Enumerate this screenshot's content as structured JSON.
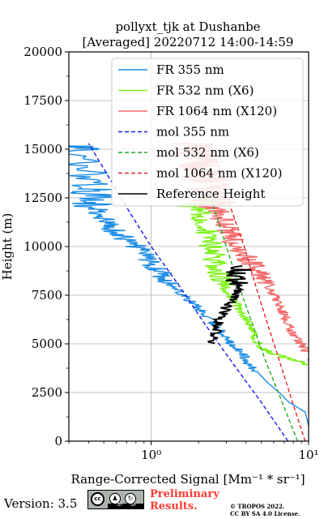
{
  "chart_data": {
    "type": "line",
    "title_line1": "pollyxt_tjk at Dushanbe",
    "title_line2": "[Averaged] 20220712 14:00-14:59",
    "xlabel": "Range-Corrected Signal [Mm⁻¹ * sr⁻¹]",
    "ylabel": "Height (m)",
    "xscale": "log",
    "xlim": [
      0.3,
      10
    ],
    "ylim": [
      0,
      20000
    ],
    "grid": true,
    "legend_position": "top-right",
    "x_ticks": [
      {
        "label": "10⁰",
        "value": 1
      },
      {
        "label": "10¹",
        "value": 10
      }
    ],
    "y_ticks": [
      {
        "label": "0",
        "value": 0
      },
      {
        "label": "2500",
        "value": 2500
      },
      {
        "label": "5000",
        "value": 5000
      },
      {
        "label": "7500",
        "value": 7500
      },
      {
        "label": "10000",
        "value": 10000
      },
      {
        "label": "12500",
        "value": 12500
      },
      {
        "label": "15000",
        "value": 15000
      },
      {
        "label": "17500",
        "value": 17500
      },
      {
        "label": "20000",
        "value": 20000
      }
    ],
    "series": [
      {
        "name": "FR 355 nm",
        "style": "solid",
        "color": "#1f8ee6",
        "noise": true,
        "points": [
          [
            11,
            0
          ],
          [
            10.5,
            150
          ],
          [
            9.5,
            1500
          ],
          [
            7.5,
            2000
          ],
          [
            6.5,
            2500
          ],
          [
            5.5,
            3000
          ],
          [
            4.8,
            3500
          ],
          [
            4.1,
            4000
          ],
          [
            3.8,
            4500
          ],
          [
            3.2,
            5000
          ],
          [
            2.9,
            5500
          ],
          [
            2.5,
            6000
          ],
          [
            2.2,
            6500
          ],
          [
            1.9,
            7000
          ],
          [
            1.6,
            7500
          ],
          [
            1.4,
            8000
          ],
          [
            1.2,
            8500
          ],
          [
            1.05,
            9000
          ],
          [
            0.9,
            9500
          ],
          [
            0.8,
            10000
          ],
          [
            0.65,
            10500
          ],
          [
            0.55,
            11000
          ],
          [
            0.5,
            11500
          ],
          [
            0.45,
            12000
          ],
          [
            0.42,
            12500
          ],
          [
            0.4,
            13000
          ],
          [
            0.38,
            14000
          ],
          [
            0.35,
            15000
          ],
          [
            0.3,
            15300
          ]
        ]
      },
      {
        "name": "FR 532 nm (X6)",
        "style": "solid",
        "color": "#7ff21d",
        "noise": true,
        "points": [
          [
            11,
            0
          ],
          [
            10,
            3900
          ],
          [
            9,
            4100
          ],
          [
            7,
            4300
          ],
          [
            5.5,
            4600
          ],
          [
            4.8,
            5000
          ],
          [
            4.5,
            5500
          ],
          [
            4.2,
            6000
          ],
          [
            3.9,
            6500
          ],
          [
            3.5,
            7000
          ],
          [
            3.1,
            7500
          ],
          [
            2.9,
            8000
          ],
          [
            2.8,
            8500
          ],
          [
            2.6,
            9000
          ],
          [
            2.5,
            9500
          ],
          [
            2.4,
            10000
          ],
          [
            2.3,
            10500
          ],
          [
            2.2,
            11000
          ],
          [
            2.1,
            11500
          ],
          [
            2.0,
            12000
          ],
          [
            2.0,
            12500
          ]
        ]
      },
      {
        "name": "FR 1064 nm (X120)",
        "style": "solid",
        "color": "#f26b6b",
        "noise": true,
        "points": [
          [
            11,
            0
          ],
          [
            10,
            4500
          ],
          [
            9,
            5000
          ],
          [
            8,
            5500
          ],
          [
            7.5,
            6000
          ],
          [
            7,
            6500
          ],
          [
            6.5,
            7000
          ],
          [
            6,
            7500
          ],
          [
            5.5,
            8000
          ],
          [
            5,
            8500
          ],
          [
            4.5,
            9000
          ],
          [
            4,
            9500
          ],
          [
            3.5,
            10000
          ],
          [
            3.2,
            10500
          ],
          [
            3,
            11000
          ],
          [
            2.8,
            11500
          ],
          [
            2.6,
            12000
          ],
          [
            2.4,
            12500
          ],
          [
            2.3,
            13000
          ],
          [
            2.2,
            13500
          ],
          [
            2.1,
            14000
          ],
          [
            2,
            14500
          ],
          [
            1.9,
            15000
          ],
          [
            1.8,
            15300
          ]
        ]
      },
      {
        "name": "mol 355 nm",
        "style": "dashed",
        "color": "#1a1ae6",
        "points": [
          [
            7.4,
            0
          ],
          [
            5.0,
            2000
          ],
          [
            3.3,
            4000
          ],
          [
            2.2,
            6000
          ],
          [
            1.5,
            8000
          ],
          [
            1.0,
            10000
          ],
          [
            0.7,
            12000
          ],
          [
            0.5,
            14000
          ],
          [
            0.4,
            15300
          ]
        ]
      },
      {
        "name": "mol 532 nm (X6)",
        "style": "dashed",
        "color": "#22aa22",
        "points": [
          [
            8.5,
            0
          ],
          [
            6.8,
            2000
          ],
          [
            5.4,
            4000
          ],
          [
            4.4,
            6000
          ],
          [
            3.6,
            8000
          ],
          [
            3.0,
            10000
          ],
          [
            2.5,
            12000
          ],
          [
            2.1,
            14000
          ],
          [
            1.9,
            15300
          ]
        ]
      },
      {
        "name": "mol 1064 nm (X120)",
        "style": "dashed",
        "color": "#e6232a",
        "points": [
          [
            9.5,
            0
          ],
          [
            7.9,
            2000
          ],
          [
            6.6,
            4000
          ],
          [
            5.5,
            6000
          ],
          [
            4.6,
            8000
          ],
          [
            3.9,
            10000
          ],
          [
            3.2,
            12000
          ],
          [
            2.7,
            14000
          ],
          [
            2.4,
            15300
          ]
        ]
      },
      {
        "name": "Reference Height",
        "style": "solid",
        "color": "#000000",
        "noise": true,
        "points": [
          [
            2.4,
            5000
          ],
          [
            2.6,
            5600
          ],
          [
            2.7,
            6200
          ],
          [
            3.0,
            6900
          ],
          [
            3.4,
            7400
          ],
          [
            3.6,
            8000
          ],
          [
            3.5,
            8600
          ],
          [
            3.8,
            9000
          ]
        ]
      }
    ]
  },
  "footer": {
    "version": "Version: 3.5",
    "license_badge": {
      "cc": "cc",
      "by": "BY",
      "sa": "SA"
    },
    "preliminary_line1": "Preliminary",
    "preliminary_line2": "Results.",
    "copyright_line1": "© TROPOS 2022.",
    "copyright_line2": "CC BY SA 4.0 License."
  }
}
